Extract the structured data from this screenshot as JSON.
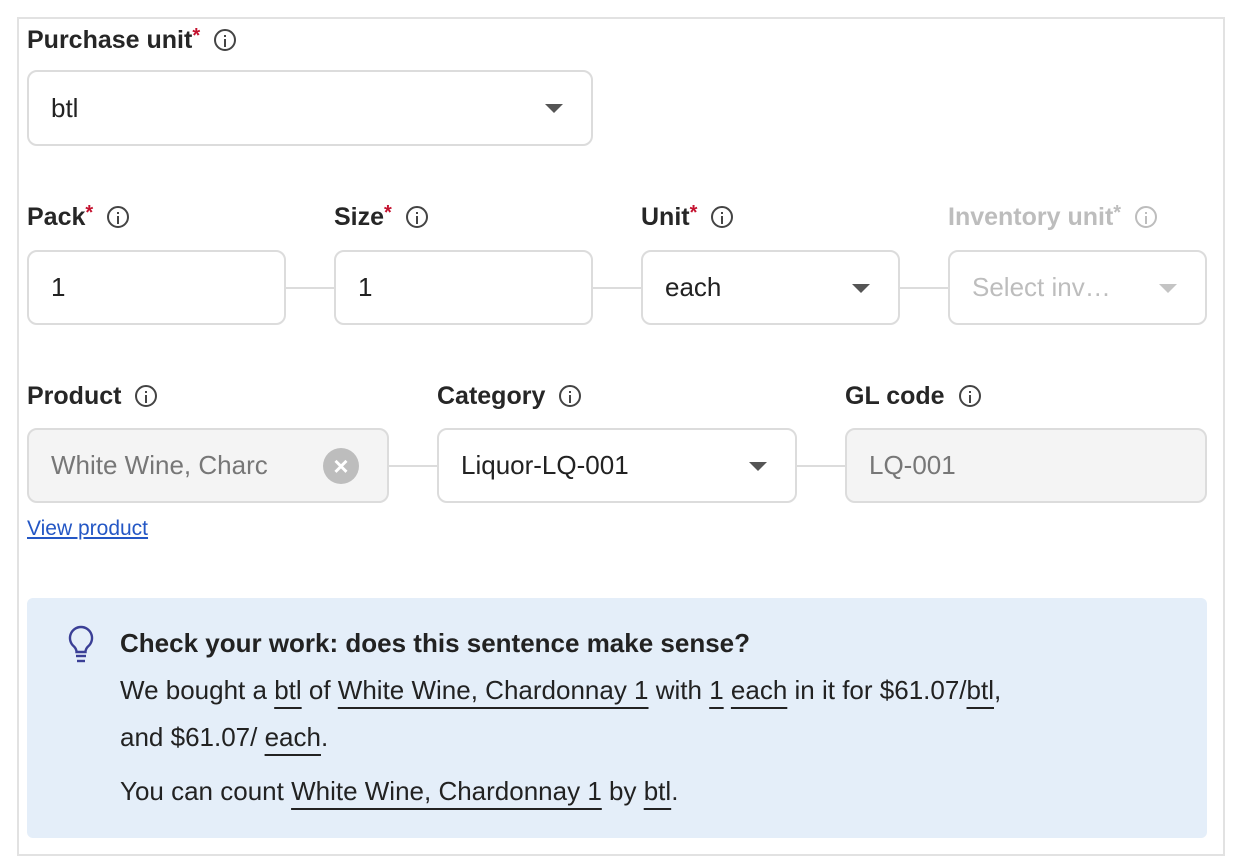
{
  "purchase_unit": {
    "label": "Purchase unit",
    "required": "*",
    "value": "btl"
  },
  "pack": {
    "label": "Pack",
    "required": "*",
    "value": "1"
  },
  "size": {
    "label": "Size",
    "required": "*",
    "value": "1"
  },
  "unit": {
    "label": "Unit",
    "required": "*",
    "value": "each"
  },
  "inventory_unit": {
    "label": "Inventory unit",
    "required": "*",
    "placeholder": "Select inv…"
  },
  "product": {
    "label": "Product",
    "value": "White Wine, Charc"
  },
  "category": {
    "label": "Category",
    "value": "Liquor-LQ-001"
  },
  "gl_code": {
    "label": "GL code",
    "value": "LQ-001"
  },
  "view_product": "View product",
  "callout": {
    "icon": "lightbulb-icon",
    "heading": "Check your work: does this sentence make sense?",
    "line1": {
      "a": "We bought a ",
      "b": "btl",
      "c": " of ",
      "d": "White Wine, Chardonnay 1",
      "e": " with ",
      "f": "1",
      "g": " ",
      "h": "each",
      "i": " in it for $61.07/",
      "j": "btl",
      "k": ","
    },
    "line2": {
      "a": "and $61.07/ ",
      "b": "each",
      "c": "."
    },
    "line3": {
      "a": "You can count ",
      "b": "White Wine, Chardonnay 1",
      "c": " by ",
      "d": "btl",
      "e": "."
    }
  },
  "colors": {
    "required": "#c4122f",
    "link": "#2457c5",
    "callout_bg": "#e4eef9",
    "icon": "#3a3f96"
  }
}
